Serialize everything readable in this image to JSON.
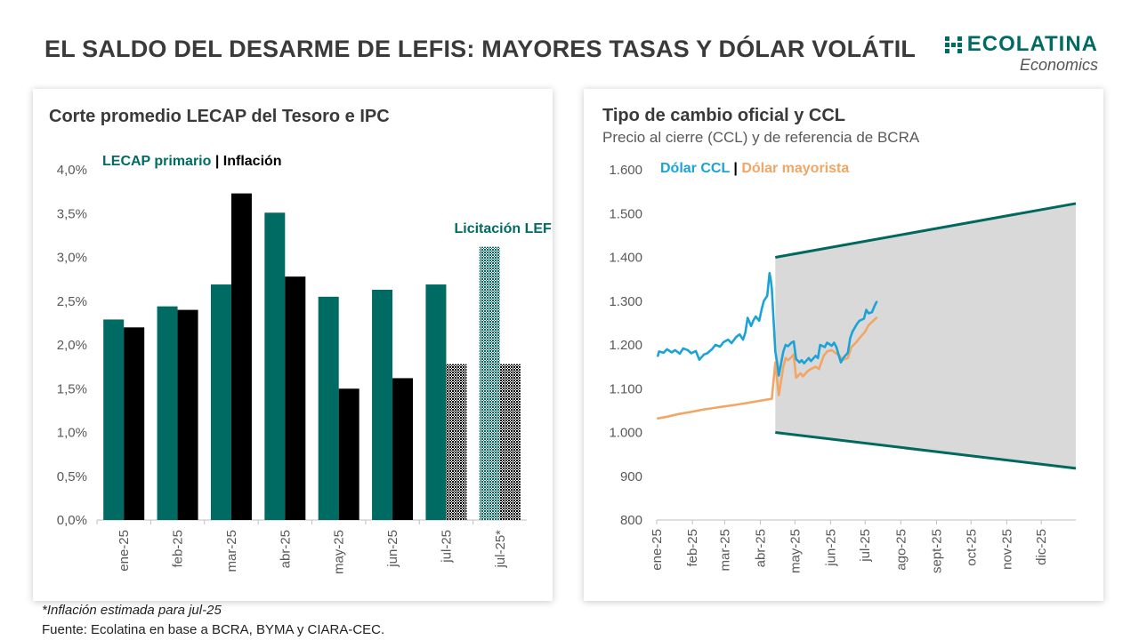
{
  "slide": {
    "title": "EL SALDO DEL DESARME DE LEFIS: MAYORES TASAS Y DÓLAR VOLÁTIL",
    "logo_name": "ECOLATINA",
    "logo_sub": "Economics",
    "footnote": "*Inflación estimada para jul-25",
    "source": "Fuente: Ecolatina en base a BCRA, BYMA y CIARA-CEC."
  },
  "colors": {
    "teal": "#006b63",
    "black": "#000000",
    "ccl": "#1ba3d8",
    "mayorista": "#f2a564",
    "band_fill": "#d9d9d9",
    "band_line": "#00695f"
  },
  "chart_data": [
    {
      "type": "bar",
      "title": "Corte promedio LECAP del Tesoro e IPC",
      "legend": {
        "a": "LECAP primario",
        "sep": " | ",
        "b": "Inflación"
      },
      "annotation": "Licitación LEFIs",
      "categories": [
        "ene-25",
        "feb-25",
        "mar-25",
        "abr-25",
        "may-25",
        "jun-25",
        "jul-25",
        "jul-25*"
      ],
      "series": [
        {
          "name": "LECAP primario",
          "values": [
            2.29,
            2.44,
            2.69,
            3.51,
            2.55,
            2.63,
            2.69,
            3.12
          ]
        },
        {
          "name": "Inflación",
          "values": [
            2.2,
            2.4,
            3.73,
            2.78,
            1.5,
            1.62,
            1.78,
            1.78
          ]
        }
      ],
      "hatched_points": [
        "LECAP primario@jul-25*",
        "Inflación@jul-25",
        "Inflación@jul-25*"
      ],
      "ylim": [
        0,
        4
      ],
      "yticks": [
        "0,0%",
        "0,5%",
        "1,0%",
        "1,5%",
        "2,0%",
        "2,5%",
        "3,0%",
        "3,5%",
        "4,0%"
      ],
      "grid": false
    },
    {
      "type": "line",
      "title": "Tipo de cambio oficial y CCL",
      "subtitle": "Precio al cierre (CCL) y de referencia de BCRA",
      "legend": {
        "a": "Dólar CCL",
        "sep": " | ",
        "b": "Dólar mayorista"
      },
      "ylim": [
        800,
        1600
      ],
      "yticks": [
        "800",
        "900",
        "1.000",
        "1.100",
        "1.200",
        "1.300",
        "1.400",
        "1.500",
        "1.600"
      ],
      "x_months": [
        "ene-25",
        "feb-25",
        "mar-25",
        "abr-25",
        "may-25",
        "jun-25",
        "jul-25",
        "ago-25",
        "sept-25",
        "oct-25",
        "nov-25",
        "dic-25"
      ],
      "x_start": "2025-01-01",
      "x_end": "2025-12-31",
      "band": {
        "start": "2025-04-14",
        "end": "2025-12-31",
        "upper": [
          1400,
          1523
        ],
        "lower": [
          1000,
          918
        ]
      },
      "series": [
        {
          "name": "Dólar CCL",
          "points": [
            [
              "2025-01-02",
              1175
            ],
            [
              "2025-01-03",
              1185
            ],
            [
              "2025-01-07",
              1182
            ],
            [
              "2025-01-10",
              1190
            ],
            [
              "2025-01-14",
              1183
            ],
            [
              "2025-01-17",
              1188
            ],
            [
              "2025-01-21",
              1180
            ],
            [
              "2025-01-24",
              1192
            ],
            [
              "2025-01-28",
              1188
            ],
            [
              "2025-01-31",
              1181
            ],
            [
              "2025-02-04",
              1186
            ],
            [
              "2025-02-07",
              1166
            ],
            [
              "2025-02-11",
              1178
            ],
            [
              "2025-02-14",
              1181
            ],
            [
              "2025-02-18",
              1190
            ],
            [
              "2025-02-21",
              1200
            ],
            [
              "2025-02-25",
              1196
            ],
            [
              "2025-02-28",
              1206
            ],
            [
              "2025-03-04",
              1212
            ],
            [
              "2025-03-07",
              1204
            ],
            [
              "2025-03-11",
              1218
            ],
            [
              "2025-03-14",
              1224
            ],
            [
              "2025-03-17",
              1212
            ],
            [
              "2025-03-19",
              1228
            ],
            [
              "2025-03-21",
              1262
            ],
            [
              "2025-03-24",
              1243
            ],
            [
              "2025-03-26",
              1256
            ],
            [
              "2025-03-28",
              1265
            ],
            [
              "2025-03-31",
              1255
            ],
            [
              "2025-04-02",
              1280
            ],
            [
              "2025-04-04",
              1300
            ],
            [
              "2025-04-07",
              1312
            ],
            [
              "2025-04-09",
              1364
            ],
            [
              "2025-04-10",
              1350
            ],
            [
              "2025-04-11",
              1328
            ],
            [
              "2025-04-14",
              1185
            ],
            [
              "2025-04-16",
              1152
            ],
            [
              "2025-04-17",
              1130
            ],
            [
              "2025-04-21",
              1185
            ],
            [
              "2025-04-23",
              1200
            ],
            [
              "2025-04-25",
              1197
            ],
            [
              "2025-04-28",
              1205
            ],
            [
              "2025-04-30",
              1208
            ],
            [
              "2025-05-02",
              1168
            ],
            [
              "2025-05-05",
              1160
            ],
            [
              "2025-05-07",
              1165
            ],
            [
              "2025-05-09",
              1158
            ],
            [
              "2025-05-13",
              1170
            ],
            [
              "2025-05-15",
              1163
            ],
            [
              "2025-05-19",
              1175
            ],
            [
              "2025-05-21",
              1170
            ],
            [
              "2025-05-23",
              1200
            ],
            [
              "2025-05-27",
              1195
            ],
            [
              "2025-05-29",
              1205
            ],
            [
              "2025-06-02",
              1198
            ],
            [
              "2025-06-04",
              1205
            ],
            [
              "2025-06-06",
              1195
            ],
            [
              "2025-06-10",
              1160
            ],
            [
              "2025-06-12",
              1170
            ],
            [
              "2025-06-16",
              1182
            ],
            [
              "2025-06-18",
              1215
            ],
            [
              "2025-06-20",
              1230
            ],
            [
              "2025-06-24",
              1248
            ],
            [
              "2025-06-26",
              1255
            ],
            [
              "2025-06-30",
              1260
            ],
            [
              "2025-07-02",
              1280
            ],
            [
              "2025-07-04",
              1272
            ],
            [
              "2025-07-07",
              1275
            ],
            [
              "2025-07-09",
              1288
            ],
            [
              "2025-07-11",
              1298
            ]
          ]
        },
        {
          "name": "Dólar mayorista",
          "points": [
            [
              "2025-01-02",
              1032
            ],
            [
              "2025-01-10",
              1036
            ],
            [
              "2025-01-20",
              1042
            ],
            [
              "2025-01-31",
              1047
            ],
            [
              "2025-02-10",
              1052
            ],
            [
              "2025-02-20",
              1056
            ],
            [
              "2025-02-28",
              1059
            ],
            [
              "2025-03-10",
              1063
            ],
            [
              "2025-03-20",
              1067
            ],
            [
              "2025-03-31",
              1072
            ],
            [
              "2025-04-04",
              1074
            ],
            [
              "2025-04-11",
              1077
            ],
            [
              "2025-04-14",
              1160
            ],
            [
              "2025-04-15",
              1135
            ],
            [
              "2025-04-17",
              1085
            ],
            [
              "2025-04-21",
              1150
            ],
            [
              "2025-04-23",
              1170
            ],
            [
              "2025-04-25",
              1165
            ],
            [
              "2025-04-28",
              1172
            ],
            [
              "2025-04-30",
              1178
            ],
            [
              "2025-05-02",
              1125
            ],
            [
              "2025-05-06",
              1135
            ],
            [
              "2025-05-08",
              1128
            ],
            [
              "2025-05-12",
              1140
            ],
            [
              "2025-05-15",
              1145
            ],
            [
              "2025-05-19",
              1150
            ],
            [
              "2025-05-22",
              1145
            ],
            [
              "2025-05-26",
              1175
            ],
            [
              "2025-05-29",
              1185
            ],
            [
              "2025-06-02",
              1188
            ],
            [
              "2025-06-05",
              1182
            ],
            [
              "2025-06-09",
              1175
            ],
            [
              "2025-06-11",
              1165
            ],
            [
              "2025-06-16",
              1170
            ],
            [
              "2025-06-19",
              1195
            ],
            [
              "2025-06-23",
              1205
            ],
            [
              "2025-06-27",
              1218
            ],
            [
              "2025-07-01",
              1230
            ],
            [
              "2025-07-04",
              1245
            ],
            [
              "2025-07-08",
              1255
            ],
            [
              "2025-07-11",
              1262
            ]
          ]
        }
      ]
    }
  ]
}
